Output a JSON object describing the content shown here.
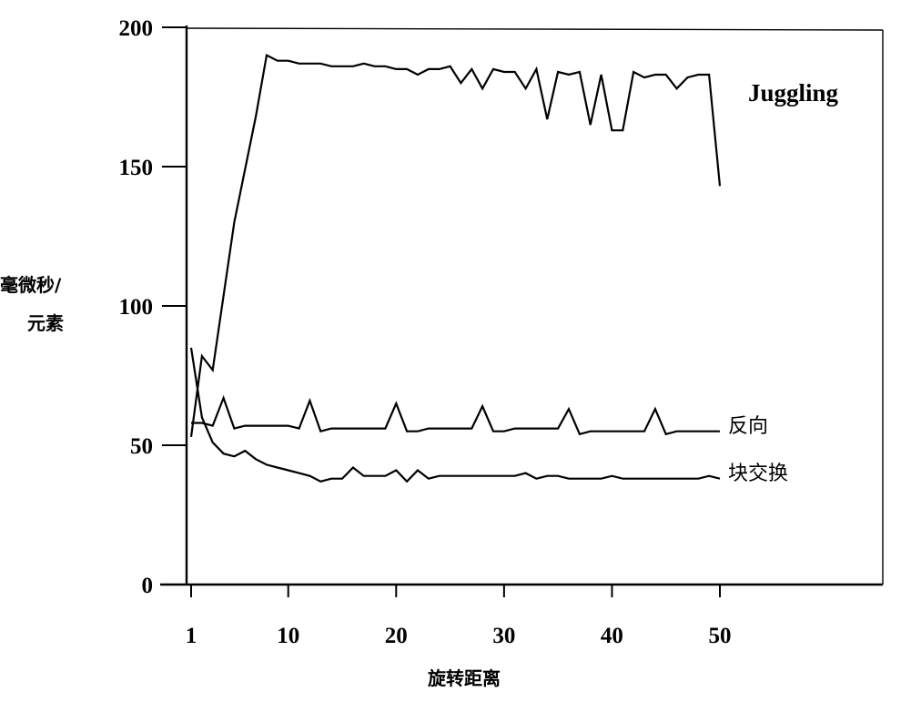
{
  "chart_data": {
    "type": "line",
    "xlabel": "旋转距离",
    "ylabel_lines": [
      "毫微秒/",
      "元素"
    ],
    "xlim": [
      1,
      50
    ],
    "ylim": [
      0,
      200
    ],
    "x_ticks": [
      1,
      10,
      20,
      30,
      40,
      50
    ],
    "y_ticks": [
      0,
      50,
      100,
      150,
      200
    ],
    "grid": false,
    "series": [
      {
        "name": "Juggling",
        "x": [
          1,
          2,
          3,
          5,
          7,
          8,
          9,
          10,
          11,
          12,
          13,
          14,
          15,
          16,
          17,
          18,
          19,
          20,
          21,
          22,
          23,
          24,
          25,
          26,
          27,
          28,
          29,
          30,
          31,
          32,
          33,
          34,
          35,
          36,
          37,
          38,
          39,
          40,
          41,
          42,
          43,
          44,
          45,
          46,
          47,
          48,
          49,
          50
        ],
        "y": [
          53,
          82,
          77,
          130,
          168,
          190,
          188,
          188,
          187,
          187,
          187,
          186,
          186,
          186,
          187,
          186,
          186,
          185,
          185,
          183,
          185,
          185,
          186,
          180,
          185,
          178,
          185,
          184,
          184,
          178,
          185,
          167,
          184,
          183,
          184,
          165,
          183,
          163,
          163,
          184,
          182,
          183,
          183,
          178,
          182,
          183,
          183,
          143
        ]
      },
      {
        "name": "反向",
        "x": [
          1,
          2,
          3,
          4,
          5,
          6,
          7,
          8,
          9,
          10,
          11,
          12,
          13,
          14,
          15,
          16,
          17,
          18,
          19,
          20,
          21,
          22,
          23,
          24,
          25,
          26,
          27,
          28,
          29,
          30,
          31,
          32,
          33,
          34,
          35,
          36,
          37,
          38,
          39,
          40,
          41,
          42,
          43,
          44,
          45,
          46,
          47,
          48,
          49,
          50
        ],
        "y": [
          58,
          58,
          57,
          67,
          56,
          57,
          57,
          57,
          57,
          57,
          56,
          66,
          55,
          56,
          56,
          56,
          56,
          56,
          56,
          65,
          55,
          55,
          56,
          56,
          56,
          56,
          56,
          64,
          55,
          55,
          56,
          56,
          56,
          56,
          56,
          63,
          54,
          55,
          55,
          55,
          55,
          55,
          55,
          63,
          54,
          55,
          55,
          55,
          55,
          55
        ]
      },
      {
        "name": "块交换",
        "x": [
          1,
          2,
          3,
          4,
          5,
          6,
          7,
          8,
          9,
          10,
          11,
          12,
          13,
          14,
          15,
          16,
          17,
          18,
          19,
          20,
          21,
          22,
          23,
          24,
          25,
          26,
          27,
          28,
          29,
          30,
          31,
          32,
          33,
          34,
          35,
          36,
          37,
          38,
          39,
          40,
          41,
          42,
          43,
          44,
          45,
          46,
          47,
          48,
          49,
          50
        ],
        "y": [
          85,
          60,
          51,
          47,
          46,
          48,
          45,
          43,
          42,
          41,
          40,
          39,
          37,
          38,
          38,
          42,
          39,
          39,
          39,
          41,
          37,
          41,
          38,
          39,
          39,
          39,
          39,
          39,
          39,
          39,
          39,
          40,
          38,
          39,
          39,
          38,
          38,
          38,
          38,
          39,
          38,
          38,
          38,
          38,
          38,
          38,
          38,
          38,
          39,
          38
        ]
      }
    ]
  }
}
